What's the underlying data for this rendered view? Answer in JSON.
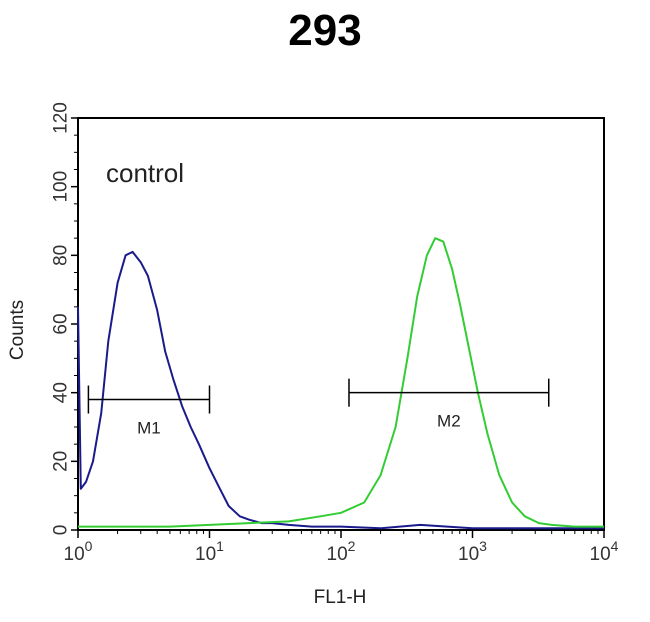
{
  "chart_data": {
    "type": "line",
    "title": "293",
    "xlabel": "FL1-H",
    "ylabel": "Counts",
    "xscale": "log",
    "xlim": [
      1,
      10000
    ],
    "ylim": [
      0,
      120
    ],
    "x_ticks": [
      {
        "value": 1,
        "base": "10",
        "exp": "0"
      },
      {
        "value": 10,
        "base": "10",
        "exp": "1"
      },
      {
        "value": 100,
        "base": "10",
        "exp": "2"
      },
      {
        "value": 1000,
        "base": "10",
        "exp": "3"
      },
      {
        "value": 10000,
        "base": "10",
        "exp": "4"
      }
    ],
    "y_ticks": [
      "0",
      "20",
      "40",
      "60",
      "80",
      "100",
      "120"
    ],
    "annotation": "control",
    "markers": [
      {
        "label": "M1",
        "x_start": 1.2,
        "x_end": 10,
        "y": 38
      },
      {
        "label": "M2",
        "x_start": 115,
        "x_end": 3800,
        "y": 40
      }
    ],
    "series": [
      {
        "color": "#1a1a8c",
        "x": [
          1,
          1.05,
          1.15,
          1.3,
          1.5,
          1.7,
          2.0,
          2.3,
          2.6,
          3.0,
          3.4,
          4.0,
          4.6,
          5.3,
          6.2,
          7.2,
          8.3,
          10,
          12,
          14,
          17,
          20,
          25,
          30,
          40,
          60,
          100,
          200,
          400,
          1000,
          3000,
          10000
        ],
        "y": [
          65,
          12,
          14,
          20,
          34,
          55,
          72,
          80,
          81,
          78,
          74,
          64,
          52,
          44,
          36,
          30,
          25,
          18,
          12,
          7,
          4,
          3,
          2,
          2,
          1.5,
          1,
          1,
          0.5,
          1.5,
          0.5,
          0.5,
          0.5
        ]
      },
      {
        "color": "#33cc33",
        "x": [
          1,
          2,
          5,
          10,
          20,
          40,
          70,
          100,
          150,
          200,
          260,
          320,
          380,
          450,
          520,
          600,
          700,
          800,
          950,
          1100,
          1300,
          1600,
          2000,
          2500,
          3200,
          4000,
          6000,
          10000
        ],
        "y": [
          1,
          1,
          1,
          1.5,
          2,
          2.5,
          4,
          5,
          8,
          16,
          30,
          50,
          68,
          80,
          85,
          84,
          76,
          66,
          52,
          40,
          28,
          16,
          8,
          4,
          2,
          1.5,
          1,
          1
        ]
      }
    ]
  }
}
